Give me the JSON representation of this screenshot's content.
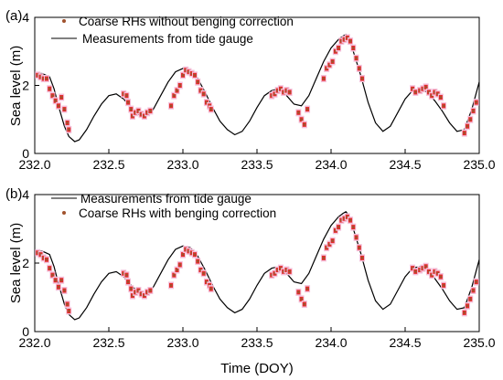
{
  "chart_data": [
    {
      "panel_label": "(a)",
      "type": "line+scatter",
      "ylabel": "Sea level (m)",
      "xlim": [
        232.0,
        235.0
      ],
      "ylim": [
        0,
        4
      ],
      "xticks": [
        "232.0",
        "232.5",
        "233.0",
        "233.5",
        "234.0",
        "234.5",
        "235.0"
      ],
      "yticks": [
        "0",
        "2",
        "4"
      ],
      "legend_position": "top-left",
      "legend": [
        {
          "name": "Coarse RHs without benging correction",
          "kind": "points",
          "color": "#a0522d"
        },
        {
          "name": "Measurements from tide gauge",
          "kind": "line",
          "color": "#000000"
        }
      ],
      "series": [
        {
          "name": "Measurements from tide gauge",
          "kind": "line",
          "color": "#000000",
          "x": [
            232.0,
            232.05,
            232.1,
            232.13,
            232.16,
            232.2,
            232.23,
            232.27,
            232.3,
            232.35,
            232.4,
            232.45,
            232.5,
            232.55,
            232.6,
            232.65,
            232.7,
            232.73,
            232.77,
            232.8,
            232.85,
            232.9,
            232.95,
            233.0,
            233.05,
            233.1,
            233.15,
            233.2,
            233.25,
            233.3,
            233.35,
            233.4,
            233.45,
            233.5,
            233.55,
            233.6,
            233.65,
            233.7,
            233.75,
            233.8,
            233.85,
            233.9,
            233.95,
            234.0,
            234.05,
            234.08,
            234.1,
            234.12,
            234.15,
            234.2,
            234.25,
            234.3,
            234.35,
            234.4,
            234.45,
            234.5,
            234.55,
            234.6,
            234.65,
            234.7,
            234.75,
            234.8,
            234.85,
            234.9,
            234.95,
            235.0
          ],
          "y": [
            2.35,
            2.35,
            2.25,
            1.9,
            1.4,
            0.8,
            0.5,
            0.35,
            0.4,
            0.7,
            1.1,
            1.45,
            1.7,
            1.75,
            1.6,
            1.35,
            1.15,
            1.1,
            1.15,
            1.3,
            1.7,
            2.1,
            2.4,
            2.5,
            2.45,
            2.2,
            1.8,
            1.35,
            0.95,
            0.7,
            0.55,
            0.65,
            0.95,
            1.35,
            1.7,
            1.85,
            1.9,
            1.7,
            1.45,
            1.4,
            1.7,
            2.2,
            2.7,
            3.1,
            3.35,
            3.45,
            3.5,
            3.4,
            3.0,
            2.3,
            1.5,
            0.9,
            0.65,
            0.8,
            1.2,
            1.6,
            1.85,
            1.9,
            1.8,
            1.55,
            1.25,
            0.9,
            0.65,
            0.7,
            1.3,
            2.1
          ]
        },
        {
          "name": "Coarse RHs without benging correction",
          "kind": "points",
          "color": "#a0522d",
          "x": [
            232.02,
            232.04,
            232.06,
            232.08,
            232.1,
            232.12,
            232.14,
            232.16,
            232.18,
            232.2,
            232.22,
            232.23,
            232.6,
            232.62,
            232.63,
            232.65,
            232.66,
            232.68,
            232.7,
            232.72,
            232.74,
            232.76,
            232.78,
            232.92,
            232.94,
            232.96,
            232.98,
            233.0,
            233.02,
            233.04,
            233.06,
            233.08,
            233.1,
            233.12,
            233.14,
            233.16,
            233.18,
            233.19,
            233.6,
            233.62,
            233.64,
            233.66,
            233.68,
            233.7,
            233.72,
            233.78,
            233.8,
            233.82,
            233.84,
            233.95,
            233.97,
            233.99,
            234.01,
            234.03,
            234.05,
            234.07,
            234.09,
            234.11,
            234.13,
            234.15,
            234.17,
            234.19,
            234.21,
            234.55,
            234.57,
            234.6,
            234.62,
            234.64,
            234.66,
            234.68,
            234.7,
            234.72,
            234.74,
            234.76,
            234.9,
            234.92,
            234.94,
            234.96,
            234.98
          ],
          "y": [
            2.3,
            2.25,
            2.2,
            2.2,
            1.9,
            1.7,
            1.55,
            1.4,
            1.65,
            1.3,
            0.9,
            0.7,
            1.75,
            1.7,
            1.5,
            1.3,
            1.1,
            1.2,
            1.25,
            1.15,
            1.1,
            1.2,
            1.25,
            1.4,
            1.7,
            1.85,
            2.0,
            2.3,
            2.45,
            2.4,
            2.35,
            2.3,
            2.1,
            1.85,
            1.75,
            1.5,
            1.4,
            1.3,
            1.7,
            1.75,
            1.85,
            1.9,
            1.8,
            1.85,
            1.8,
            1.2,
            1.0,
            0.85,
            1.3,
            2.2,
            2.5,
            2.6,
            2.7,
            3.0,
            3.1,
            3.3,
            3.35,
            3.4,
            3.3,
            3.1,
            2.8,
            2.5,
            2.2,
            1.9,
            1.8,
            1.85,
            1.9,
            1.95,
            1.8,
            1.7,
            1.8,
            1.75,
            1.65,
            1.4,
            0.6,
            0.8,
            1.0,
            1.25,
            1.5
          ]
        }
      ]
    },
    {
      "panel_label": "(b)",
      "type": "line+scatter",
      "ylabel": "Sea level (m)",
      "xlabel": "Time (DOY)",
      "xlim": [
        232.0,
        235.0
      ],
      "ylim": [
        0,
        4
      ],
      "xticks": [
        "232.0",
        "232.5",
        "233.0",
        "233.5",
        "234.0",
        "234.5",
        "235.0"
      ],
      "yticks": [
        "0",
        "2",
        "4"
      ],
      "legend_position": "top-left",
      "legend": [
        {
          "name": "Measurements from tide gauge",
          "kind": "line",
          "color": "#000000"
        },
        {
          "name": "Coarse RHs with benging correction",
          "kind": "points",
          "color": "#a0522d"
        }
      ],
      "series": [
        {
          "name": "Measurements from tide gauge",
          "kind": "line",
          "color": "#000000",
          "x": [
            232.0,
            232.05,
            232.1,
            232.13,
            232.16,
            232.2,
            232.23,
            232.27,
            232.3,
            232.35,
            232.4,
            232.45,
            232.5,
            232.55,
            232.6,
            232.65,
            232.7,
            232.73,
            232.77,
            232.8,
            232.85,
            232.9,
            232.95,
            233.0,
            233.05,
            233.1,
            233.15,
            233.2,
            233.25,
            233.3,
            233.35,
            233.4,
            233.45,
            233.5,
            233.55,
            233.6,
            233.65,
            233.7,
            233.75,
            233.8,
            233.85,
            233.9,
            233.95,
            234.0,
            234.05,
            234.08,
            234.1,
            234.12,
            234.15,
            234.2,
            234.25,
            234.3,
            234.35,
            234.4,
            234.45,
            234.5,
            234.55,
            234.6,
            234.65,
            234.7,
            234.75,
            234.8,
            234.85,
            234.9,
            234.95,
            235.0
          ],
          "y": [
            2.35,
            2.35,
            2.25,
            1.9,
            1.4,
            0.8,
            0.5,
            0.35,
            0.4,
            0.7,
            1.1,
            1.45,
            1.7,
            1.75,
            1.6,
            1.35,
            1.15,
            1.1,
            1.15,
            1.3,
            1.7,
            2.1,
            2.4,
            2.5,
            2.45,
            2.2,
            1.8,
            1.35,
            0.95,
            0.7,
            0.55,
            0.65,
            0.95,
            1.35,
            1.7,
            1.85,
            1.9,
            1.7,
            1.45,
            1.4,
            1.7,
            2.2,
            2.7,
            3.1,
            3.35,
            3.45,
            3.5,
            3.4,
            3.0,
            2.3,
            1.5,
            0.9,
            0.65,
            0.8,
            1.2,
            1.6,
            1.85,
            1.9,
            1.8,
            1.55,
            1.25,
            0.9,
            0.65,
            0.7,
            1.3,
            2.1
          ]
        },
        {
          "name": "Coarse RHs with benging correction",
          "kind": "points",
          "color": "#a0522d",
          "x": [
            232.02,
            232.04,
            232.06,
            232.08,
            232.1,
            232.12,
            232.14,
            232.16,
            232.18,
            232.2,
            232.22,
            232.23,
            232.6,
            232.62,
            232.63,
            232.65,
            232.66,
            232.68,
            232.7,
            232.72,
            232.74,
            232.76,
            232.78,
            232.92,
            232.94,
            232.96,
            232.98,
            233.0,
            233.02,
            233.04,
            233.06,
            233.08,
            233.1,
            233.12,
            233.14,
            233.16,
            233.18,
            233.19,
            233.6,
            233.62,
            233.64,
            233.66,
            233.68,
            233.7,
            233.72,
            233.78,
            233.8,
            233.82,
            233.84,
            233.95,
            233.97,
            233.99,
            234.01,
            234.03,
            234.05,
            234.07,
            234.09,
            234.11,
            234.13,
            234.15,
            234.17,
            234.19,
            234.21,
            234.55,
            234.57,
            234.6,
            234.62,
            234.64,
            234.66,
            234.68,
            234.7,
            234.72,
            234.74,
            234.76,
            234.9,
            234.92,
            234.94,
            234.96,
            234.98
          ],
          "y": [
            2.3,
            2.25,
            2.15,
            2.1,
            1.85,
            1.65,
            1.5,
            1.3,
            1.5,
            1.2,
            0.8,
            0.6,
            1.7,
            1.65,
            1.45,
            1.25,
            1.05,
            1.15,
            1.2,
            1.1,
            1.05,
            1.15,
            1.2,
            1.35,
            1.65,
            1.8,
            1.95,
            2.25,
            2.4,
            2.35,
            2.3,
            2.25,
            2.05,
            1.8,
            1.7,
            1.45,
            1.35,
            1.25,
            1.65,
            1.7,
            1.8,
            1.85,
            1.75,
            1.8,
            1.75,
            1.15,
            0.95,
            0.8,
            1.25,
            2.15,
            2.45,
            2.55,
            2.65,
            2.95,
            3.05,
            3.25,
            3.3,
            3.35,
            3.25,
            3.05,
            2.75,
            2.45,
            2.15,
            1.85,
            1.75,
            1.8,
            1.85,
            1.9,
            1.75,
            1.65,
            1.75,
            1.7,
            1.6,
            1.35,
            0.55,
            0.75,
            0.95,
            1.2,
            1.45
          ]
        }
      ]
    }
  ]
}
